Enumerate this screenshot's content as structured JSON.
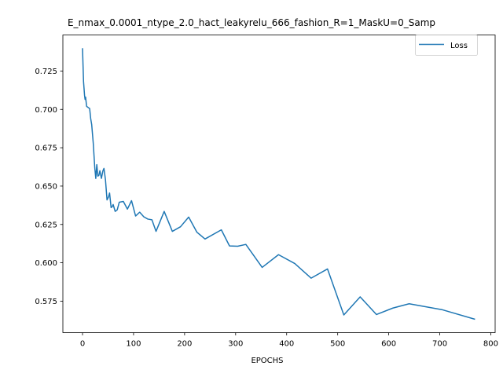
{
  "chart_data": {
    "type": "line",
    "title": "E_nmax_0.0001_ntype_2.0_hact_leakyrelu_666_fashion_R=1_MaskU=0_Samp",
    "xlabel": "EPOCHS",
    "ylabel": "",
    "xlim": [
      -38.5,
      808.5
    ],
    "ylim": [
      0.5545,
      0.7485
    ],
    "xticks": [
      0,
      100,
      200,
      300,
      400,
      500,
      600,
      700,
      800
    ],
    "yticks": [
      0.575,
      0.6,
      0.625,
      0.65,
      0.675,
      0.7,
      0.725
    ],
    "xtick_labels": [
      "0",
      "100",
      "200",
      "300",
      "400",
      "500",
      "600",
      "700",
      "800"
    ],
    "ytick_labels": [
      "0.575",
      "0.600",
      "0.625",
      "0.650",
      "0.675",
      "0.700",
      "0.725"
    ],
    "grid": false,
    "legend_position": "top-right",
    "series": [
      {
        "name": "Loss",
        "color": "#1f77b4",
        "points": [
          [
            0,
            0.7395
          ],
          [
            2,
            0.718
          ],
          [
            4,
            0.709
          ],
          [
            5,
            0.7065
          ],
          [
            6,
            0.708
          ],
          [
            8,
            0.702
          ],
          [
            12,
            0.701
          ],
          [
            14,
            0.7005
          ],
          [
            16,
            0.694
          ],
          [
            18,
            0.69
          ],
          [
            21,
            0.678
          ],
          [
            24,
            0.662
          ],
          [
            26,
            0.655
          ],
          [
            28,
            0.664
          ],
          [
            30,
            0.6565
          ],
          [
            32,
            0.657
          ],
          [
            34,
            0.66
          ],
          [
            37,
            0.655
          ],
          [
            40,
            0.66
          ],
          [
            42,
            0.6615
          ],
          [
            45,
            0.654
          ],
          [
            48,
            0.641
          ],
          [
            51,
            0.643
          ],
          [
            53,
            0.6455
          ],
          [
            56,
            0.636
          ],
          [
            58,
            0.6365
          ],
          [
            60,
            0.638
          ],
          [
            64,
            0.6335
          ],
          [
            68,
            0.6345
          ],
          [
            72,
            0.6395
          ],
          [
            80,
            0.64
          ],
          [
            88,
            0.635
          ],
          [
            96,
            0.6405
          ],
          [
            104,
            0.6305
          ],
          [
            112,
            0.633
          ],
          [
            120,
            0.63
          ],
          [
            128,
            0.6285
          ],
          [
            136,
            0.628
          ],
          [
            144,
            0.6205
          ],
          [
            160,
            0.6335
          ],
          [
            176,
            0.6205
          ],
          [
            192,
            0.6235
          ],
          [
            208,
            0.6298
          ],
          [
            224,
            0.62
          ],
          [
            240,
            0.6155
          ],
          [
            272,
            0.6215
          ],
          [
            288,
            0.611
          ],
          [
            304,
            0.6108
          ],
          [
            320,
            0.612
          ],
          [
            352,
            0.597
          ],
          [
            384,
            0.6053
          ],
          [
            416,
            0.5995
          ],
          [
            448,
            0.59
          ],
          [
            480,
            0.596
          ],
          [
            512,
            0.566
          ],
          [
            544,
            0.5778
          ],
          [
            576,
            0.5663
          ],
          [
            608,
            0.5705
          ],
          [
            640,
            0.5733
          ],
          [
            704,
            0.5695
          ],
          [
            768,
            0.5633
          ]
        ]
      }
    ]
  }
}
